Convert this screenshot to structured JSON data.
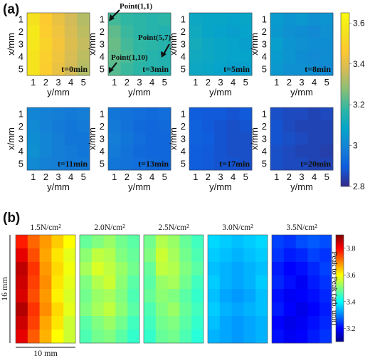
{
  "panel_a": {
    "letter": "(a)",
    "xlabel": "y/mm",
    "ylabel": "x/mm",
    "ticks": [
      "1",
      "2",
      "3",
      "4",
      "5"
    ],
    "colorbar": {
      "ticks": [
        "3.6",
        "3.4",
        "3.2",
        "3",
        "2.8"
      ],
      "range": [
        2.8,
        3.65
      ]
    },
    "annotations": [
      "Point(1,1)",
      "Point(5,7)",
      "Point(1,10)"
    ]
  },
  "panel_b": {
    "letter": "(b)",
    "height_label": "16 mm",
    "width_label": "10 mm",
    "colorbar": {
      "title": "Peak to Peak (arb. unit)",
      "ticks": [
        "3.8",
        "3.6",
        "3.4",
        "3.2"
      ],
      "range": [
        3.1,
        3.9
      ]
    }
  },
  "colors": {
    "scale_a": [
      "#352a87",
      "#0f5cdd",
      "#1481d6",
      "#06a4ca",
      "#2eb7a4",
      "#87bf77",
      "#d1bb59",
      "#fec832",
      "#f5e31e",
      "#f9fb0e"
    ],
    "scale_b": [
      "#00008f",
      "#0000ff",
      "#0080ff",
      "#00ffff",
      "#80ff80",
      "#ffff00",
      "#ff8000",
      "#ff0000",
      "#800000"
    ]
  },
  "chart_data": [
    {
      "type": "heatmap",
      "title": "t=0min",
      "xlabel": "y/mm",
      "ylabel": "x/mm",
      "x": [
        1,
        2,
        3,
        4,
        5
      ],
      "y": [
        1,
        2,
        3,
        4,
        5
      ],
      "values": [
        [
          3.55,
          3.47,
          3.42,
          3.37,
          3.33
        ],
        [
          3.58,
          3.48,
          3.43,
          3.38,
          3.34
        ],
        [
          3.57,
          3.5,
          3.44,
          3.39,
          3.35
        ],
        [
          3.56,
          3.49,
          3.43,
          3.38,
          3.34
        ],
        [
          3.56,
          3.48,
          3.42,
          3.37,
          3.33
        ]
      ],
      "zlim": [
        2.8,
        3.65
      ]
    },
    {
      "type": "heatmap",
      "title": "t=3min",
      "xlabel": "y/mm",
      "ylabel": "x/mm",
      "x": [
        1,
        2,
        3,
        4,
        5
      ],
      "y": [
        1,
        2,
        3,
        4,
        5
      ],
      "values": [
        [
          3.2,
          3.18,
          3.17,
          3.16,
          3.17
        ],
        [
          3.23,
          3.19,
          3.17,
          3.16,
          3.15
        ],
        [
          3.24,
          3.2,
          3.18,
          3.17,
          3.16
        ],
        [
          3.23,
          3.21,
          3.18,
          3.16,
          3.15
        ],
        [
          3.22,
          3.19,
          3.17,
          3.16,
          3.15
        ]
      ],
      "zlim": [
        2.8,
        3.65
      ]
    },
    {
      "type": "heatmap",
      "title": "t=5min",
      "xlabel": "y/mm",
      "ylabel": "x/mm",
      "x": [
        1,
        2,
        3,
        4,
        5
      ],
      "y": [
        1,
        2,
        3,
        4,
        5
      ],
      "values": [
        [
          3.1,
          3.09,
          3.09,
          3.08,
          3.09
        ],
        [
          3.11,
          3.09,
          3.08,
          3.07,
          3.08
        ],
        [
          3.12,
          3.1,
          3.09,
          3.08,
          3.07
        ],
        [
          3.11,
          3.1,
          3.09,
          3.08,
          3.08
        ],
        [
          3.1,
          3.09,
          3.08,
          3.07,
          3.07
        ]
      ],
      "zlim": [
        2.8,
        3.65
      ]
    },
    {
      "type": "heatmap",
      "title": "t=8min",
      "xlabel": "y/mm",
      "ylabel": "x/mm",
      "x": [
        1,
        2,
        3,
        4,
        5
      ],
      "y": [
        1,
        2,
        3,
        4,
        5
      ],
      "values": [
        [
          3.06,
          3.04,
          3.05,
          3.03,
          3.04
        ],
        [
          3.05,
          3.03,
          3.02,
          3.01,
          3.03
        ],
        [
          3.07,
          3.04,
          3.03,
          3.02,
          3.02
        ],
        [
          3.06,
          3.04,
          3.02,
          3.01,
          3.02
        ],
        [
          3.05,
          3.03,
          3.03,
          3.02,
          3.01
        ]
      ],
      "zlim": [
        2.8,
        3.65
      ]
    },
    {
      "type": "heatmap",
      "title": "t=11min",
      "xlabel": "y/mm",
      "ylabel": "x/mm",
      "x": [
        1,
        2,
        3,
        4,
        5
      ],
      "y": [
        1,
        2,
        3,
        4,
        5
      ],
      "values": [
        [
          3.0,
          2.99,
          2.98,
          2.97,
          2.98
        ],
        [
          3.01,
          2.99,
          2.97,
          2.96,
          2.97
        ],
        [
          3.02,
          3.0,
          2.98,
          2.96,
          2.96
        ],
        [
          3.03,
          3.0,
          2.98,
          2.97,
          2.96
        ],
        [
          3.01,
          2.99,
          2.98,
          2.97,
          2.97
        ]
      ],
      "zlim": [
        2.8,
        3.65
      ]
    },
    {
      "type": "heatmap",
      "title": "t=13min",
      "xlabel": "y/mm",
      "ylabel": "x/mm",
      "x": [
        1,
        2,
        3,
        4,
        5
      ],
      "y": [
        1,
        2,
        3,
        4,
        5
      ],
      "values": [
        [
          2.96,
          2.95,
          2.94,
          2.93,
          2.94
        ],
        [
          2.97,
          2.95,
          2.93,
          2.92,
          2.93
        ],
        [
          2.98,
          2.96,
          2.94,
          2.92,
          2.92
        ],
        [
          2.97,
          2.95,
          2.93,
          2.92,
          2.92
        ],
        [
          2.96,
          2.95,
          2.94,
          2.93,
          2.92
        ]
      ],
      "zlim": [
        2.8,
        3.65
      ]
    },
    {
      "type": "heatmap",
      "title": "t=17min",
      "xlabel": "y/mm",
      "ylabel": "x/mm",
      "x": [
        1,
        2,
        3,
        4,
        5
      ],
      "y": [
        1,
        2,
        3,
        4,
        5
      ],
      "values": [
        [
          2.9,
          2.89,
          2.89,
          2.88,
          2.89
        ],
        [
          2.91,
          2.89,
          2.88,
          2.87,
          2.88
        ],
        [
          2.91,
          2.9,
          2.88,
          2.87,
          2.87
        ],
        [
          2.9,
          2.89,
          2.88,
          2.87,
          2.87
        ],
        [
          2.9,
          2.89,
          2.88,
          2.88,
          2.87
        ]
      ],
      "zlim": [
        2.8,
        3.65
      ]
    },
    {
      "type": "heatmap",
      "title": "t=20min",
      "xlabel": "y/mm",
      "ylabel": "x/mm",
      "x": [
        1,
        2,
        3,
        4,
        5
      ],
      "y": [
        1,
        2,
        3,
        4,
        5
      ],
      "values": [
        [
          2.87,
          2.86,
          2.86,
          2.85,
          2.86
        ],
        [
          2.88,
          2.86,
          2.85,
          2.85,
          2.85
        ],
        [
          2.88,
          2.87,
          2.86,
          2.85,
          2.85
        ],
        [
          2.87,
          2.86,
          2.85,
          2.85,
          2.84
        ],
        [
          2.87,
          2.86,
          2.86,
          2.85,
          2.85
        ]
      ],
      "zlim": [
        2.8,
        3.65
      ]
    },
    {
      "type": "heatmap",
      "title": "1.5N/cm²",
      "values": [
        [
          3.78,
          3.72,
          3.68,
          3.64,
          3.6
        ],
        [
          3.82,
          3.74,
          3.67,
          3.62,
          3.58
        ],
        [
          3.85,
          3.76,
          3.68,
          3.63,
          3.59
        ],
        [
          3.84,
          3.75,
          3.69,
          3.62,
          3.58
        ],
        [
          3.83,
          3.74,
          3.68,
          3.61,
          3.57
        ],
        [
          3.86,
          3.76,
          3.69,
          3.63,
          3.58
        ],
        [
          3.84,
          3.75,
          3.67,
          3.62,
          3.56
        ],
        [
          3.82,
          3.73,
          3.66,
          3.6,
          3.56
        ]
      ],
      "zlim": [
        3.1,
        3.9
      ]
    },
    {
      "type": "heatmap",
      "title": "2.0N/cm²",
      "values": [
        [
          3.48,
          3.5,
          3.52,
          3.49,
          3.47
        ],
        [
          3.51,
          3.55,
          3.54,
          3.5,
          3.48
        ],
        [
          3.53,
          3.57,
          3.55,
          3.52,
          3.49
        ],
        [
          3.5,
          3.54,
          3.56,
          3.51,
          3.47
        ],
        [
          3.49,
          3.52,
          3.53,
          3.5,
          3.46
        ],
        [
          3.5,
          3.53,
          3.55,
          3.51,
          3.47
        ],
        [
          3.47,
          3.5,
          3.52,
          3.49,
          3.45
        ],
        [
          3.46,
          3.49,
          3.5,
          3.47,
          3.44
        ]
      ],
      "zlim": [
        3.1,
        3.9
      ]
    },
    {
      "type": "heatmap",
      "title": "2.5N/cm²",
      "values": [
        [
          3.49,
          3.54,
          3.52,
          3.48,
          3.45
        ],
        [
          3.5,
          3.56,
          3.53,
          3.49,
          3.46
        ],
        [
          3.48,
          3.55,
          3.54,
          3.5,
          3.47
        ],
        [
          3.47,
          3.52,
          3.53,
          3.49,
          3.45
        ],
        [
          3.48,
          3.51,
          3.5,
          3.47,
          3.44
        ],
        [
          3.46,
          3.5,
          3.52,
          3.48,
          3.45
        ],
        [
          3.45,
          3.49,
          3.5,
          3.47,
          3.44
        ],
        [
          3.44,
          3.48,
          3.49,
          3.46,
          3.43
        ]
      ],
      "zlim": [
        3.1,
        3.9
      ]
    },
    {
      "type": "heatmap",
      "title": "3.0N/cm²",
      "values": [
        [
          3.37,
          3.36,
          3.35,
          3.36,
          3.37
        ],
        [
          3.36,
          3.35,
          3.34,
          3.35,
          3.36
        ],
        [
          3.35,
          3.34,
          3.33,
          3.34,
          3.35
        ],
        [
          3.36,
          3.34,
          3.33,
          3.34,
          3.36
        ],
        [
          3.35,
          3.33,
          3.32,
          3.33,
          3.35
        ],
        [
          3.36,
          3.34,
          3.33,
          3.34,
          3.35
        ],
        [
          3.35,
          3.33,
          3.32,
          3.33,
          3.34
        ],
        [
          3.34,
          3.33,
          3.32,
          3.33,
          3.34
        ]
      ],
      "zlim": [
        3.1,
        3.9
      ]
    },
    {
      "type": "heatmap",
      "title": "3.5N/cm²",
      "values": [
        [
          3.25,
          3.24,
          3.26,
          3.27,
          3.26
        ],
        [
          3.24,
          3.22,
          3.23,
          3.25,
          3.24
        ],
        [
          3.22,
          3.2,
          3.21,
          3.23,
          3.25
        ],
        [
          3.23,
          3.21,
          3.19,
          3.22,
          3.24
        ],
        [
          3.21,
          3.19,
          3.2,
          3.21,
          3.23
        ],
        [
          3.22,
          3.2,
          3.18,
          3.2,
          3.22
        ],
        [
          3.2,
          3.18,
          3.19,
          3.21,
          3.23
        ],
        [
          3.21,
          3.19,
          3.2,
          3.22,
          3.24
        ]
      ],
      "zlim": [
        3.1,
        3.9
      ]
    }
  ]
}
